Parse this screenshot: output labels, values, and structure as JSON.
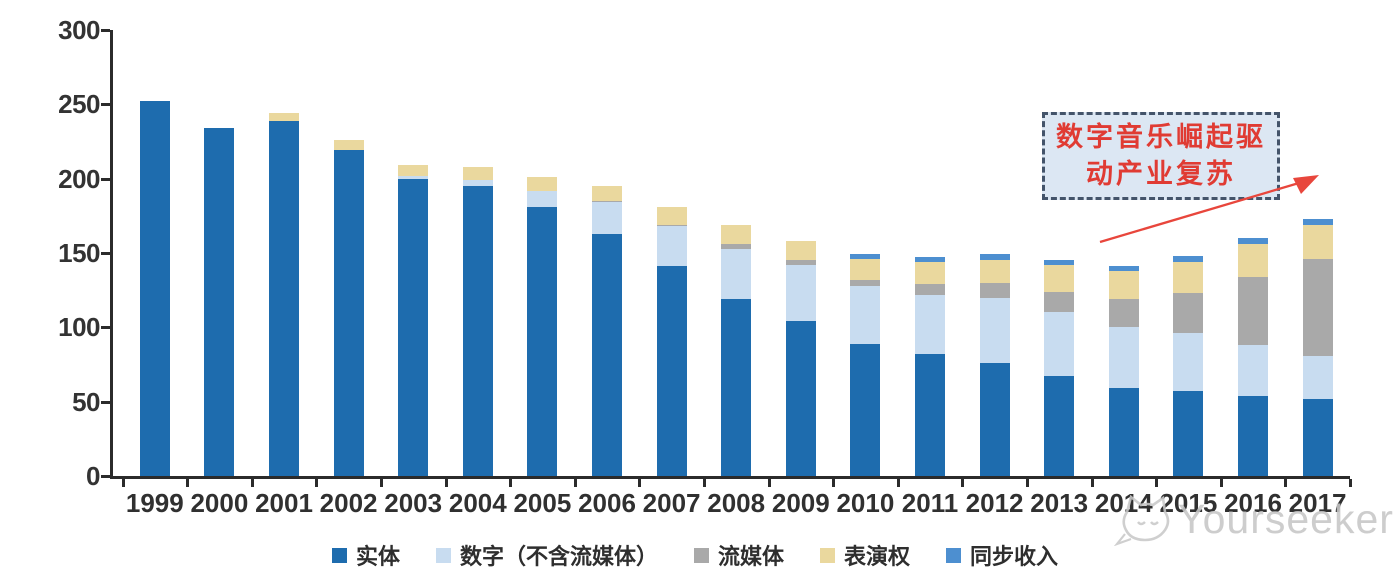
{
  "chart_data": {
    "type": "bar",
    "stacked": true,
    "categories": [
      "1999",
      "2000",
      "2001",
      "2002",
      "2003",
      "2004",
      "2005",
      "2006",
      "2007",
      "2008",
      "2009",
      "2010",
      "2011",
      "2012",
      "2013",
      "2014",
      "2015",
      "2016",
      "2017"
    ],
    "series": [
      {
        "key": "physical",
        "name": "实体",
        "color": "#1E6CAE",
        "values": [
          252,
          234,
          239,
          219,
          200,
          195,
          181,
          163,
          141,
          119,
          104,
          89,
          82,
          76,
          67,
          59,
          57,
          54,
          52
        ]
      },
      {
        "key": "digital-ex-streaming",
        "name": "数字（不含流媒体）",
        "color": "#C8DCF0",
        "values": [
          0,
          0,
          0,
          0,
          2,
          4,
          11,
          21,
          27,
          34,
          38,
          39,
          40,
          44,
          43,
          41,
          39,
          34,
          29
        ]
      },
      {
        "key": "streaming",
        "name": "流媒体",
        "color": "#A9A9A9",
        "values": [
          0,
          0,
          0,
          0,
          0,
          0,
          0,
          1,
          1,
          3,
          3,
          4,
          7,
          10,
          14,
          19,
          27,
          46,
          65
        ]
      },
      {
        "key": "performance-rights",
        "name": "表演权",
        "color": "#EAD89E",
        "values": [
          0,
          0,
          5,
          7,
          7,
          9,
          9,
          10,
          12,
          13,
          13,
          14,
          15,
          15,
          18,
          19,
          21,
          22,
          23
        ]
      },
      {
        "key": "sync-revenue",
        "name": "同步收入",
        "color": "#4D8FD0",
        "values": [
          0,
          0,
          0,
          0,
          0,
          0,
          0,
          0,
          0,
          0,
          0,
          3,
          3,
          4,
          3,
          3,
          4,
          4,
          4
        ]
      }
    ],
    "ylim": [
      0,
      300
    ],
    "yticks": [
      0,
      50,
      100,
      150,
      200,
      250,
      300
    ],
    "gridlines": false,
    "legend_position": "bottom"
  },
  "annotation": {
    "line1": "数字音乐崛起驱",
    "line2": "动产业复苏",
    "box_fill": "#DCE7F3",
    "border_color": "#44546A",
    "text_color": "#E03B33",
    "arrow_color": "#E8463C"
  },
  "watermark": {
    "text": "Yourseeker"
  },
  "axis": {
    "line_color": "#2b2b2b",
    "label_color": "#333333"
  }
}
